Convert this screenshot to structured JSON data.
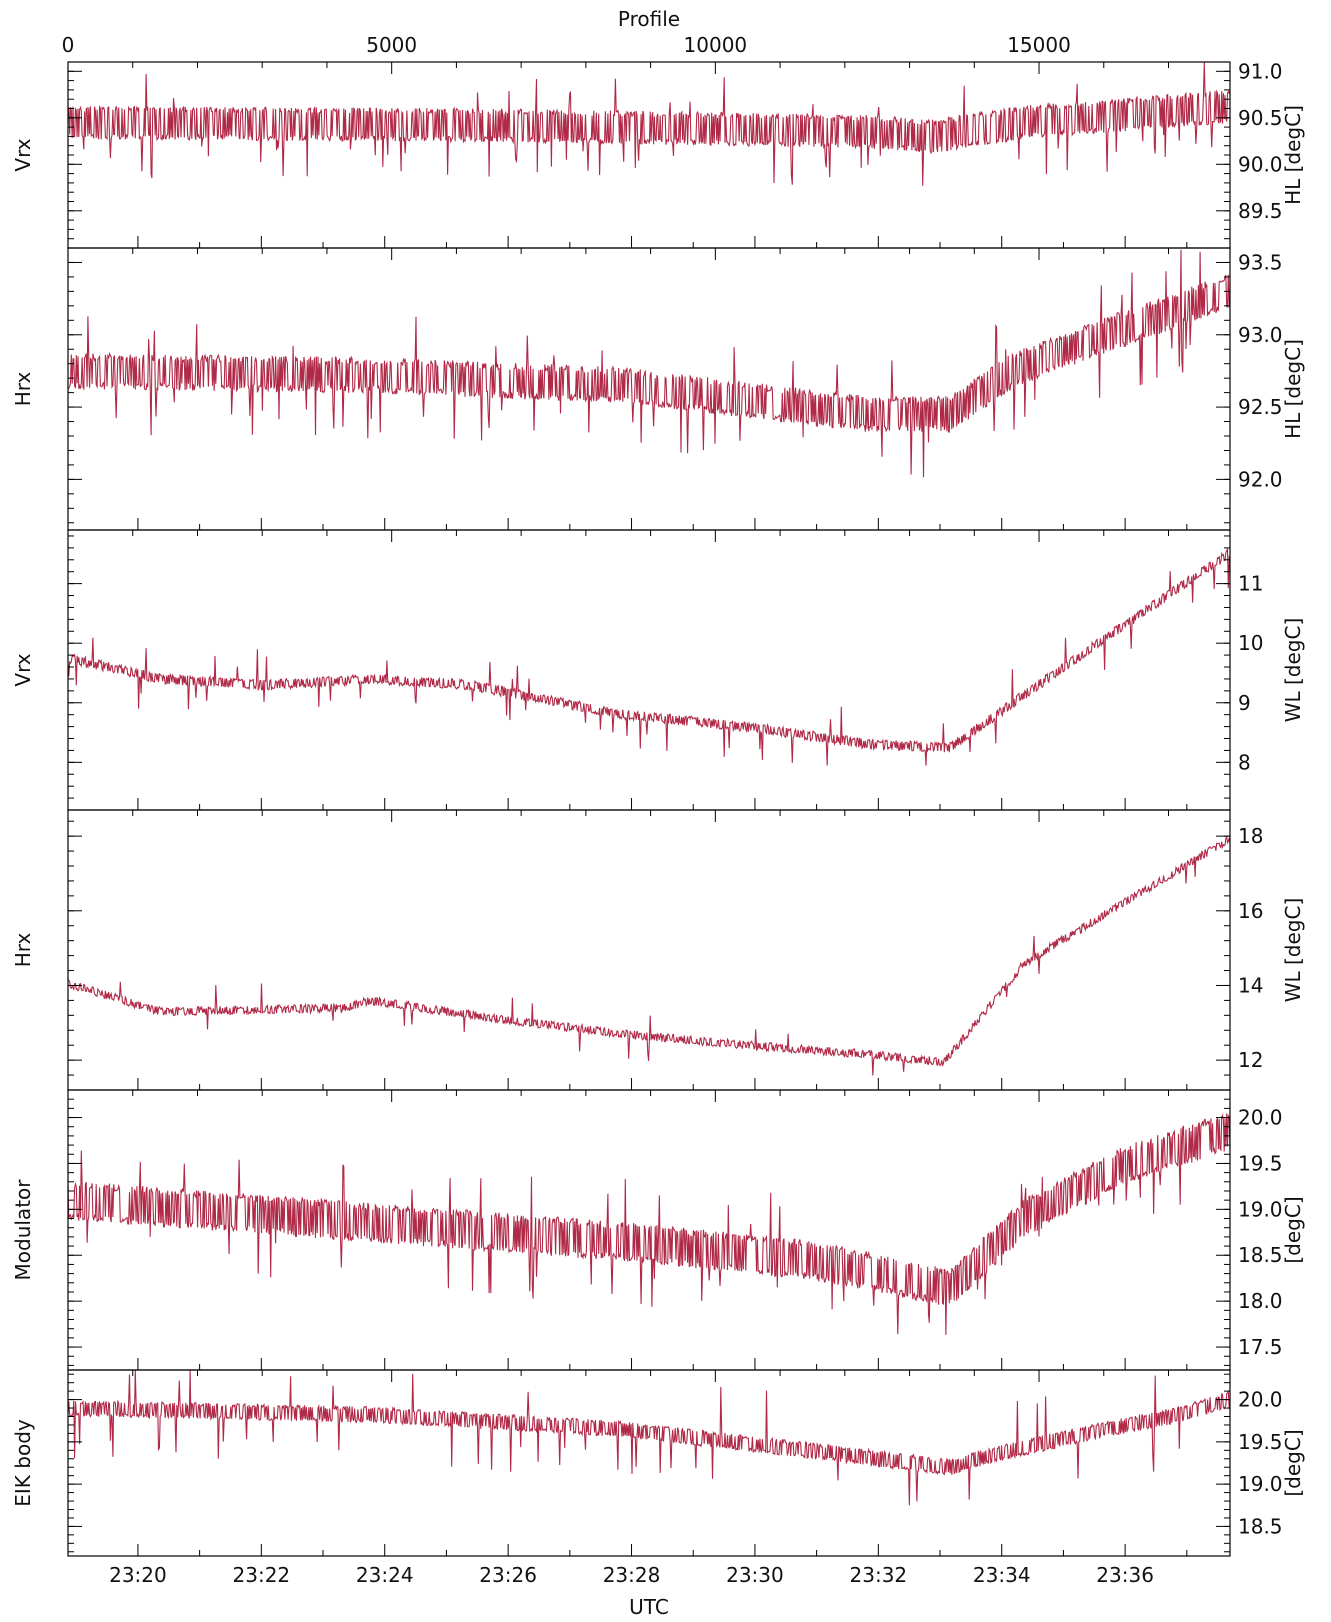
{
  "chart_data": {
    "type": "line",
    "x_axis_top": {
      "label": "Profile",
      "range": [
        0,
        17950
      ],
      "ticks": [
        0,
        5000,
        10000,
        15000
      ]
    },
    "x_axis_bottom": {
      "label": "UTC",
      "range_minutes": [
        "23:18:52",
        "23:37:42"
      ],
      "ticks": [
        "23:20",
        "23:22",
        "23:24",
        "23:26",
        "23:28",
        "23:30",
        "23:32",
        "23:34",
        "23:36"
      ]
    },
    "color": "#b02a48",
    "panels": [
      {
        "left_label": "Vrx",
        "right_label": "HL  [degC]",
        "ylim": [
          89.1,
          91.1
        ],
        "ticks": [
          89.5,
          90.0,
          90.5,
          91.0
        ],
        "tick_labels": [
          "89.5",
          "90.0",
          "90.5",
          "91.0"
        ],
        "knots": [
          [
            0,
            90.45
          ],
          [
            7,
            90.42
          ],
          [
            13,
            90.35
          ],
          [
            14,
            90.3
          ],
          [
            15.5,
            90.45
          ],
          [
            18.8,
            90.62
          ]
        ],
        "band": 0.3,
        "noise": 0.06,
        "spike_rate": 0.05,
        "spike_size": 0.6
      },
      {
        "left_label": "Hrx",
        "right_label": "HL  [degC]",
        "ylim": [
          91.65,
          93.6
        ],
        "ticks": [
          92.0,
          92.5,
          93.0,
          93.5
        ],
        "tick_labels": [
          "92.0",
          "92.5",
          "93.0",
          "93.5"
        ],
        "knots": [
          [
            0,
            92.75
          ],
          [
            5,
            92.72
          ],
          [
            9,
            92.65
          ],
          [
            11,
            92.55
          ],
          [
            13,
            92.45
          ],
          [
            14.3,
            92.45
          ],
          [
            15.3,
            92.75
          ],
          [
            16.5,
            92.95
          ],
          [
            17.5,
            93.1
          ],
          [
            18.8,
            93.3
          ]
        ],
        "band": 0.2,
        "noise": 0.05,
        "spike_rate": 0.05,
        "spike_size": 0.45
      },
      {
        "left_label": "Vrx",
        "right_label": "WL  [degC]",
        "ylim": [
          7.2,
          11.9
        ],
        "ticks": [
          8,
          9,
          10,
          11
        ],
        "tick_labels": [
          "8",
          "9",
          "10",
          "11"
        ],
        "knots": [
          [
            0,
            9.75
          ],
          [
            1.5,
            9.4
          ],
          [
            3.2,
            9.3
          ],
          [
            5,
            9.4
          ],
          [
            6.5,
            9.3
          ],
          [
            9,
            8.8
          ],
          [
            11,
            8.6
          ],
          [
            13,
            8.3
          ],
          [
            14.3,
            8.25
          ],
          [
            16,
            9.5
          ],
          [
            18.8,
            11.5
          ]
        ],
        "band": 0.12,
        "noise": 0.05,
        "spike_rate": 0.025,
        "spike_size": 0.6
      },
      {
        "left_label": "Hrx",
        "right_label": "WL  [degC]",
        "ylim": [
          11.2,
          18.7
        ],
        "ticks": [
          12,
          14,
          16,
          18
        ],
        "tick_labels": [
          "12",
          "14",
          "16",
          "18"
        ],
        "knots": [
          [
            0,
            14.05
          ],
          [
            1.5,
            13.3
          ],
          [
            4.5,
            13.4
          ],
          [
            4.9,
            13.6
          ],
          [
            7,
            13.1
          ],
          [
            9,
            12.7
          ],
          [
            11,
            12.4
          ],
          [
            13,
            12.15
          ],
          [
            14.2,
            11.95
          ],
          [
            15.5,
            14.6
          ],
          [
            18.8,
            17.9
          ]
        ],
        "band": 0.15,
        "noise": 0.08,
        "spike_rate": 0.02,
        "spike_size": 0.7
      },
      {
        "left_label": "Modulator",
        "right_label": "[degC]",
        "ylim": [
          17.25,
          20.3
        ],
        "ticks": [
          17.5,
          18.0,
          18.5,
          19.0,
          19.5,
          20.0
        ],
        "tick_labels": [
          "17.5",
          "18.0",
          "18.5",
          "19.0",
          "19.5",
          "20.0"
        ],
        "knots": [
          [
            0,
            19.1
          ],
          [
            4,
            18.9
          ],
          [
            9,
            18.65
          ],
          [
            12,
            18.45
          ],
          [
            14.3,
            18.15
          ],
          [
            15.5,
            18.9
          ],
          [
            17,
            19.45
          ],
          [
            18.8,
            19.85
          ]
        ],
        "band": 0.35,
        "noise": 0.08,
        "spike_rate": 0.04,
        "spike_size": 0.7
      },
      {
        "left_label": "EIK  body",
        "right_label": "[degC]",
        "ylim": [
          18.15,
          20.35
        ],
        "ticks": [
          18.5,
          19.0,
          19.5,
          20.0
        ],
        "tick_labels": [
          "18.5",
          "19.0",
          "19.5",
          "20.0"
        ],
        "knots": [
          [
            0,
            19.9
          ],
          [
            5,
            19.82
          ],
          [
            9,
            19.65
          ],
          [
            12,
            19.4
          ],
          [
            14.3,
            19.2
          ],
          [
            15,
            19.35
          ],
          [
            16.5,
            19.6
          ],
          [
            18,
            19.82
          ],
          [
            18.8,
            20.0
          ]
        ],
        "band": 0.15,
        "noise": 0.04,
        "spike_rate": 0.03,
        "spike_size": 0.65
      }
    ]
  }
}
